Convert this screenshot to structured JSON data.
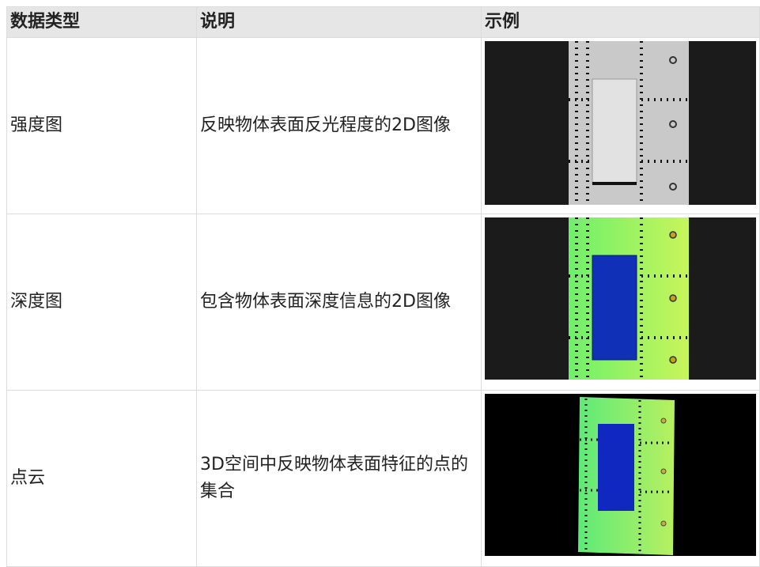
{
  "header": {
    "columns": [
      "数据类型",
      "说明",
      "示例"
    ]
  },
  "table": {
    "rows": [
      [
        "强度图",
        "反映物体表面反光程度的2D图像"
      ],
      [
        "深度图",
        "包含物体表面深度信息的2D图像"
      ],
      [
        "点云",
        "3D空间中反映物体表面特征的点的集合"
      ]
    ]
  }
}
